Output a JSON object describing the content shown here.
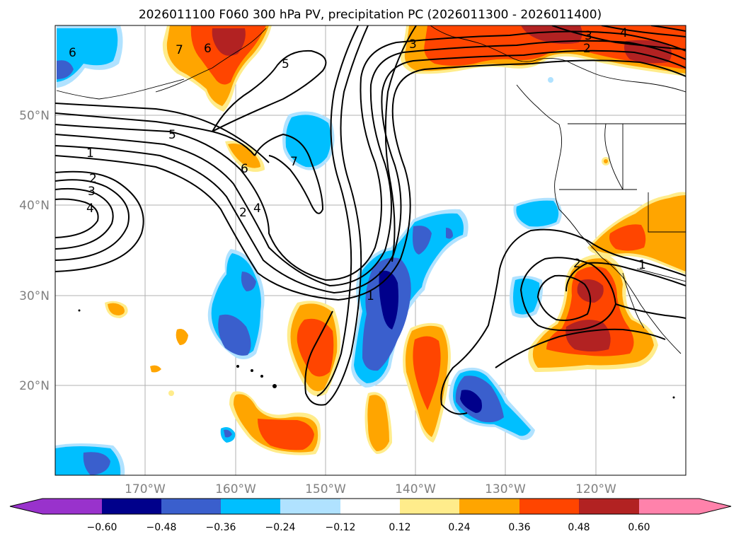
{
  "title": "2026011100 F060 300 hPa PV, precipitation PC (2026011300 - 2026011400)",
  "map": {
    "lat_labels": [
      "50°N",
      "40°N",
      "30°N",
      "20°N"
    ],
    "lon_labels": [
      "170°W",
      "160°W",
      "150°W",
      "140°W",
      "130°W",
      "120°W"
    ],
    "contour_labels": [
      "6",
      "7",
      "6",
      "5",
      "3",
      "3",
      "4",
      "2",
      "5",
      "1",
      "2",
      "3",
      "4",
      "6",
      "7",
      "4",
      "2",
      "2",
      "1",
      "1"
    ]
  },
  "colorbar": {
    "ticks": [
      "−0.60",
      "−0.48",
      "−0.36",
      "−0.24",
      "−0.12",
      "0.12",
      "0.24",
      "0.36",
      "0.48",
      "0.60"
    ],
    "colors": {
      "under": "#9932cc",
      "b1": "#00008b",
      "b2": "#3a5fcd",
      "b3": "#00bfff",
      "b4": "#b0e2ff",
      "mid": "#ffffff",
      "p1": "#ffec8b",
      "p2": "#ffa500",
      "p3": "#ff4500",
      "p4": "#b22222",
      "over": "#ff82ab"
    }
  }
}
